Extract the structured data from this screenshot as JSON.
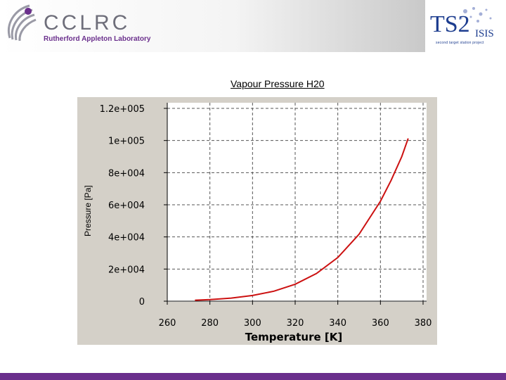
{
  "header": {
    "org": "CCLRC",
    "lab": "Rutherford Appleton Laboratory",
    "partner_mark": "TS2",
    "partner_name": "ISIS",
    "partner_tagline": "second target station project"
  },
  "colors": {
    "brand_purple": "#6a2f8c",
    "curve": "#cc1111",
    "panel": "#d4d0c8"
  },
  "chart_data": {
    "type": "line",
    "title": "Vapour Pressure H20",
    "xlabel": "Temperature [K]",
    "ylabel": "Pressure [Pa]",
    "xlim": [
      260,
      380
    ],
    "ylim": [
      0,
      120000
    ],
    "xticks": [
      260,
      280,
      300,
      320,
      340,
      360,
      380
    ],
    "yticks": [
      0,
      20000,
      40000,
      60000,
      80000,
      100000,
      120000
    ],
    "xtick_labels": [
      "260",
      "280",
      "300",
      "320",
      "340",
      "360",
      "380"
    ],
    "ytick_labels": [
      "0",
      "2e+004",
      "4e+004",
      "6e+004",
      "8e+004",
      "1e+005",
      "1.2e+005"
    ],
    "grid": true,
    "series": [
      {
        "name": "Vapour Pressure H20",
        "x": [
          273,
          280,
          290,
          300,
          310,
          320,
          330,
          340,
          350,
          360,
          365,
          370,
          373
        ],
        "values": [
          611,
          990,
          1920,
          3540,
          6230,
          10540,
          17200,
          27200,
          41700,
          62200,
          75200,
          90000,
          101300
        ]
      }
    ]
  }
}
